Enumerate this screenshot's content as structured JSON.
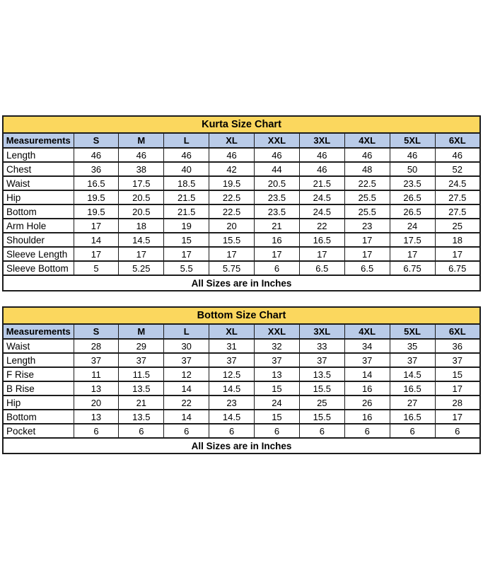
{
  "colors": {
    "background": "#FFFFFF",
    "title_bg": "#FBD75E",
    "header_bg": "#B9CBE8",
    "border": "#1C1C1C",
    "text": "#000000"
  },
  "tables": [
    {
      "title": "Kurta Size Chart",
      "columns": [
        "Measurements",
        "S",
        "M",
        "L",
        "XL",
        "XXL",
        "3XL",
        "4XL",
        "5XL",
        "6XL"
      ],
      "rows": [
        {
          "label": "Length",
          "values": [
            "46",
            "46",
            "46",
            "46",
            "46",
            "46",
            "46",
            "46",
            "46"
          ]
        },
        {
          "label": "Chest",
          "values": [
            "36",
            "38",
            "40",
            "42",
            "44",
            "46",
            "48",
            "50",
            "52"
          ]
        },
        {
          "label": "Waist",
          "values": [
            "16.5",
            "17.5",
            "18.5",
            "19.5",
            "20.5",
            "21.5",
            "22.5",
            "23.5",
            "24.5"
          ]
        },
        {
          "label": "Hip",
          "values": [
            "19.5",
            "20.5",
            "21.5",
            "22.5",
            "23.5",
            "24.5",
            "25.5",
            "26.5",
            "27.5"
          ]
        },
        {
          "label": "Bottom",
          "values": [
            "19.5",
            "20.5",
            "21.5",
            "22.5",
            "23.5",
            "24.5",
            "25.5",
            "26.5",
            "27.5"
          ]
        },
        {
          "label": "Arm Hole",
          "values": [
            "17",
            "18",
            "19",
            "20",
            "21",
            "22",
            "23",
            "24",
            "25"
          ]
        },
        {
          "label": "Shoulder",
          "values": [
            "14",
            "14.5",
            "15",
            "15.5",
            "16",
            "16.5",
            "17",
            "17.5",
            "18"
          ]
        },
        {
          "label": "Sleeve Length",
          "values": [
            "17",
            "17",
            "17",
            "17",
            "17",
            "17",
            "17",
            "17",
            "17"
          ]
        },
        {
          "label": "Sleeve Bottom",
          "values": [
            "5",
            "5.25",
            "5.5",
            "5.75",
            "6",
            "6.5",
            "6.5",
            "6.75",
            "6.75"
          ]
        }
      ],
      "footer": "All Sizes are in Inches"
    },
    {
      "title": "Bottom Size Chart",
      "columns": [
        "Measurements",
        "S",
        "M",
        "L",
        "XL",
        "XXL",
        "3XL",
        "4XL",
        "5XL",
        "6XL"
      ],
      "rows": [
        {
          "label": "Waist",
          "values": [
            "28",
            "29",
            "30",
            "31",
            "32",
            "33",
            "34",
            "35",
            "36"
          ]
        },
        {
          "label": "Length",
          "values": [
            "37",
            "37",
            "37",
            "37",
            "37",
            "37",
            "37",
            "37",
            "37"
          ]
        },
        {
          "label": "F Rise",
          "values": [
            "11",
            "11.5",
            "12",
            "12.5",
            "13",
            "13.5",
            "14",
            "14.5",
            "15"
          ]
        },
        {
          "label": "B Rise",
          "values": [
            "13",
            "13.5",
            "14",
            "14.5",
            "15",
            "15.5",
            "16",
            "16.5",
            "17"
          ]
        },
        {
          "label": "Hip",
          "values": [
            "20",
            "21",
            "22",
            "23",
            "24",
            "25",
            "26",
            "27",
            "28"
          ]
        },
        {
          "label": "Bottom",
          "values": [
            "13",
            "13.5",
            "14",
            "14.5",
            "15",
            "15.5",
            "16",
            "16.5",
            "17"
          ]
        },
        {
          "label": "Pocket",
          "values": [
            "6",
            "6",
            "6",
            "6",
            "6",
            "6",
            "6",
            "6",
            "6"
          ]
        }
      ],
      "footer": "All Sizes are in Inches"
    }
  ]
}
